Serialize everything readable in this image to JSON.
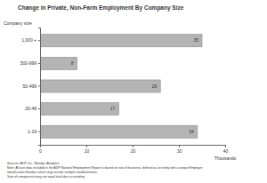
{
  "chart_data": {
    "type": "bar",
    "orientation": "horizontal",
    "title": "Change in Private, Non-Farm Employment By Company Size",
    "ylabel": "Company size",
    "xlabel": "Thousands",
    "categories": [
      "1,000 +",
      "500-999",
      "50-499",
      "20-49",
      "1-19"
    ],
    "values": [
      35,
      8,
      26,
      17,
      34
    ],
    "color": "#b4b4b4",
    "xlim": [
      0,
      40
    ],
    "xticks": [
      0,
      10,
      20,
      30,
      40
    ],
    "data_labels": true,
    "annotations": [
      "Sources: ADP, Inc.; Moody's Analytics",
      "Note: All size data included in the ADP National Employment Report is based on size of business, defined as an entity with a unique Employer",
      "Identification Number, which may include multiple establishments.",
      "Sum of components may not equal total due to rounding."
    ]
  }
}
